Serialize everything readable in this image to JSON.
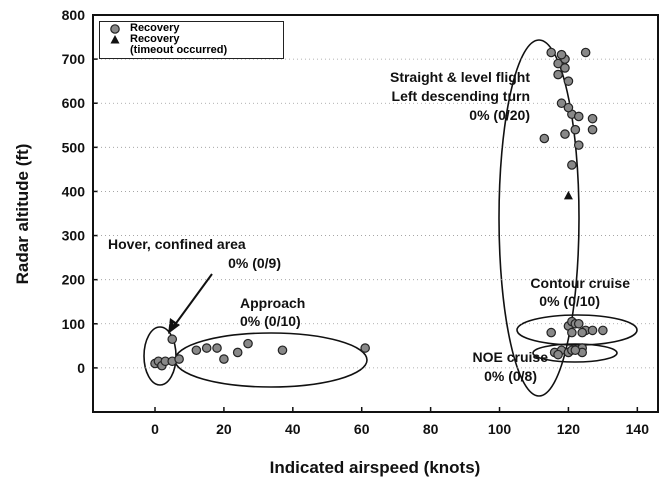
{
  "chart_data": {
    "type": "scatter",
    "x_label": "Indicated airspeed (knots)",
    "y_label": "Radar altitude (ft)",
    "xlim": [
      -18,
      146
    ],
    "xticks": [
      0,
      20,
      40,
      60,
      80,
      100,
      120,
      140
    ],
    "ylim": [
      -100,
      800
    ],
    "yticks": [
      0,
      100,
      200,
      300,
      400,
      500,
      600,
      700,
      800
    ],
    "grid": true,
    "legend": "upper left",
    "series": [
      {
        "name": "Recovery",
        "marker": "circle",
        "color": "#888888",
        "x": [
          0,
          1,
          2,
          3,
          5,
          5,
          7,
          12,
          15,
          18,
          20,
          24,
          27,
          37,
          61,
          113,
          115,
          117,
          117,
          119,
          118,
          120,
          119,
          121,
          122,
          123,
          121,
          123,
          125,
          127,
          127,
          119,
          118,
          120,
          115,
          120,
          121,
          122,
          121,
          125,
          127,
          130,
          124,
          123,
          116,
          118,
          120,
          121,
          124,
          124,
          117,
          122
        ],
        "values": [
          10,
          15,
          5,
          15,
          15,
          65,
          20,
          40,
          45,
          45,
          20,
          35,
          55,
          40,
          45,
          520,
          715,
          690,
          665,
          700,
          600,
          650,
          530,
          575,
          540,
          570,
          460,
          505,
          715,
          565,
          540,
          680,
          710,
          590,
          80,
          95,
          105,
          100,
          80,
          85,
          85,
          85,
          80,
          100,
          35,
          40,
          35,
          40,
          45,
          35,
          30,
          40
        ]
      },
      {
        "name": "Recovery\n(timeout occurred)",
        "marker": "triangle",
        "color": "#111111",
        "x": [
          120
        ],
        "values": [
          390
        ]
      }
    ],
    "annotations": [
      {
        "lines": [
          "Straight & level flight",
          "Left descending turn",
          "0% (0/20)"
        ]
      },
      {
        "lines": [
          "Hover, confined area",
          "0% (0/9)"
        ]
      },
      {
        "lines": [
          "Approach",
          "0% (0/10)"
        ]
      },
      {
        "lines": [
          "Contour cruise",
          "0% (0/10)"
        ]
      },
      {
        "lines": [
          "NOE cruise",
          "0% (0/8)"
        ]
      }
    ]
  }
}
